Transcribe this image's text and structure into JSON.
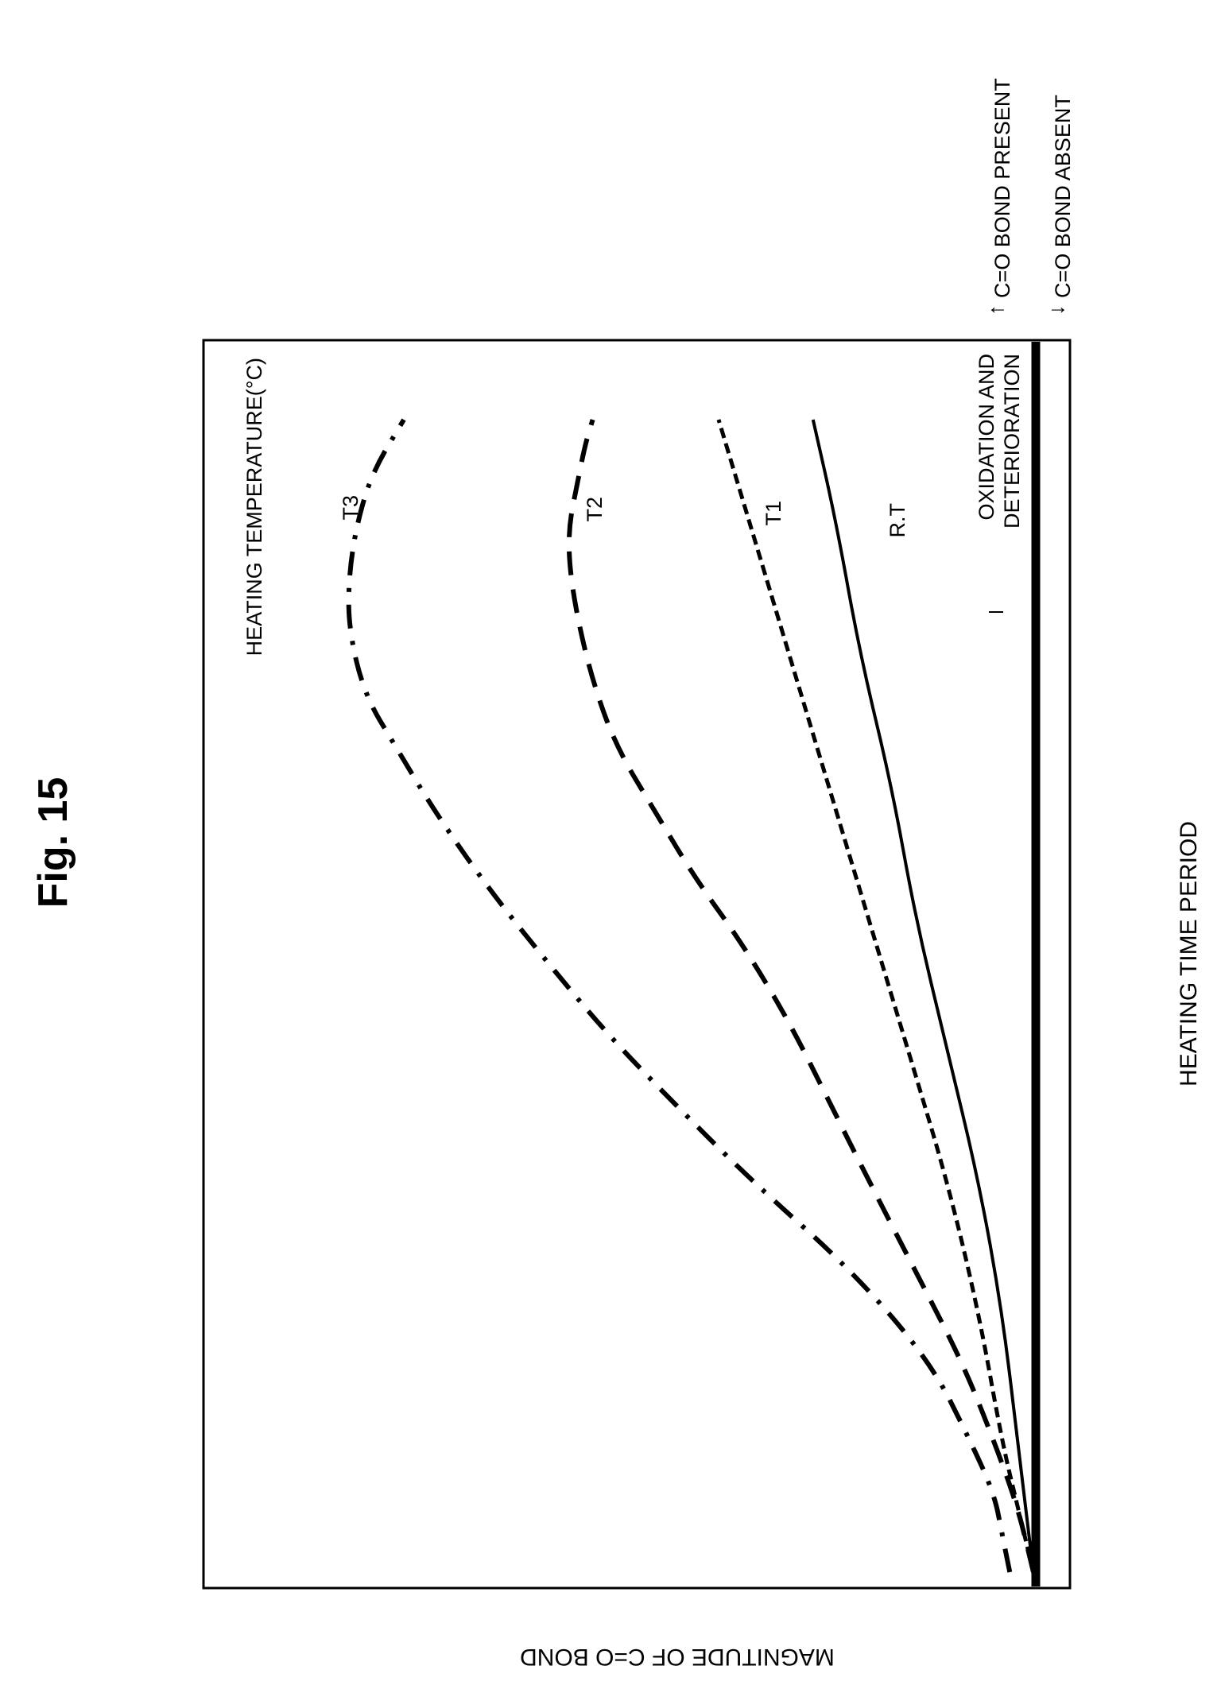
{
  "figure": {
    "title": "Fig. 15"
  },
  "chart_data": {
    "type": "line",
    "xlabel": "HEATING TIME PERIOD",
    "ylabel": "MAGNITUDE OF C=O BOND",
    "legend_title": "HEATING TEMPERATURE(°C)",
    "xlim": [
      0,
      1
    ],
    "ylim": [
      0,
      1
    ],
    "axis_ticks": false,
    "grid": false,
    "baseline_annotation": "OXIDATION AND DETERIORATION",
    "y_direction_notes": {
      "up": "C=O BOND PRESENT",
      "down": "C=O BOND ABSENT"
    },
    "series": [
      {
        "name": "T3",
        "style": "dash-dot",
        "x": [
          0.0,
          0.03,
          0.06,
          0.1,
          0.16,
          0.23,
          0.3,
          0.36,
          0.41,
          0.46,
          0.52,
          0.58,
          0.63,
          0.67,
          0.72,
          0.76,
          0.8,
          0.84,
          0.88
        ],
        "y": [
          0.03,
          0.04,
          0.05,
          0.08,
          0.13,
          0.23,
          0.36,
          0.46,
          0.54,
          0.61,
          0.69,
          0.76,
          0.81,
          0.85,
          0.87,
          0.87,
          0.86,
          0.84,
          0.8
        ]
      },
      {
        "name": "T2",
        "style": "dashed",
        "x": [
          0.0,
          0.05,
          0.1,
          0.16,
          0.23,
          0.3,
          0.36,
          0.42,
          0.48,
          0.53,
          0.58,
          0.63,
          0.68,
          0.73,
          0.77,
          0.8,
          0.83,
          0.86,
          0.88
        ],
        "y": [
          0.0,
          0.02,
          0.05,
          0.09,
          0.15,
          0.21,
          0.26,
          0.31,
          0.37,
          0.43,
          0.48,
          0.53,
          0.56,
          0.58,
          0.59,
          0.59,
          0.58,
          0.57,
          0.56
        ]
      },
      {
        "name": "T1",
        "style": "short-dash",
        "x": [
          0.0,
          0.05,
          0.1,
          0.2,
          0.3,
          0.4,
          0.5,
          0.6,
          0.7,
          0.8,
          0.88
        ],
        "y": [
          0.0,
          0.02,
          0.04,
          0.07,
          0.11,
          0.16,
          0.21,
          0.26,
          0.31,
          0.36,
          0.4
        ]
      },
      {
        "name": "R.T",
        "style": "solid",
        "x": [
          0.0,
          0.1,
          0.2,
          0.3,
          0.4,
          0.5,
          0.6,
          0.7,
          0.8,
          0.88
        ],
        "y": [
          0.0,
          0.02,
          0.04,
          0.07,
          0.11,
          0.15,
          0.18,
          0.22,
          0.25,
          0.28
        ]
      }
    ]
  }
}
